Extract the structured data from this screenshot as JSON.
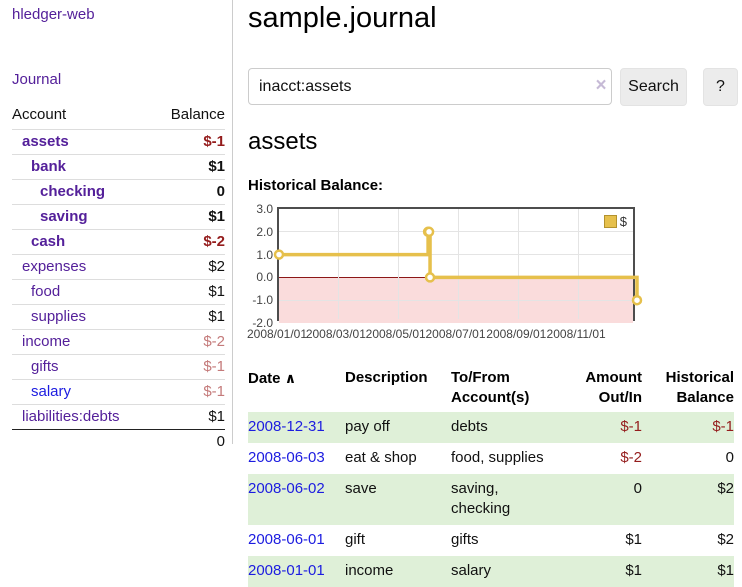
{
  "app": {
    "brand": "hledger-web",
    "nav_journal": "Journal"
  },
  "sidebar": {
    "header": {
      "account": "Account",
      "balance": "Balance"
    },
    "accounts": [
      {
        "name": "assets",
        "balance": "$-1",
        "level": 0,
        "active": true
      },
      {
        "name": "bank",
        "balance": "$1",
        "level": 1,
        "active": true
      },
      {
        "name": "checking",
        "balance": "0",
        "level": 2,
        "active": true
      },
      {
        "name": "saving",
        "balance": "$1",
        "level": 2,
        "active": true
      },
      {
        "name": "cash",
        "balance": "$-2",
        "level": 1,
        "active": true
      },
      {
        "name": "expenses",
        "balance": "$2",
        "level": 0,
        "active": false
      },
      {
        "name": "food",
        "balance": "$1",
        "level": 1,
        "active": false
      },
      {
        "name": "supplies",
        "balance": "$1",
        "level": 1,
        "active": false
      },
      {
        "name": "income",
        "balance": "$-2",
        "level": 0,
        "active": false
      },
      {
        "name": "gifts",
        "balance": "$-1",
        "level": 1,
        "active": false
      },
      {
        "name": "salary",
        "balance": "$-1",
        "level": 1,
        "active": false
      },
      {
        "name": "liabilities:debts",
        "balance": "$1",
        "level": 0,
        "active": false
      }
    ],
    "total": "0"
  },
  "main": {
    "title": "sample.journal",
    "search": {
      "value": "inacct:assets",
      "clear_icon": "×",
      "search_button": "Search",
      "help_button": "?"
    },
    "account_title": "assets",
    "chart_label": "Historical Balance:"
  },
  "chart_data": {
    "type": "line",
    "step": true,
    "title": "Historical Balance",
    "series": [
      {
        "name": "$",
        "color": "#e6c04c",
        "points": [
          [
            "2008-01-01",
            1
          ],
          [
            "2008-06-01",
            2
          ],
          [
            "2008-06-02",
            2
          ],
          [
            "2008-06-03",
            0
          ],
          [
            "2008-12-31",
            -1
          ]
        ]
      }
    ],
    "x_range": [
      "2008-01-01",
      "2008-12-31"
    ],
    "x_ticks": [
      "2008/01/01",
      "2008/03/01",
      "2008/05/01",
      "2008/07/01",
      "2008/09/01",
      "2008/11/01"
    ],
    "y_ticks": [
      3.0,
      2.0,
      1.0,
      0.0,
      -1.0,
      -2.0
    ],
    "ylim": [
      -2,
      3
    ],
    "grid": true,
    "negative_fill": "#fadcdc",
    "zero_line_color": "#8c1717",
    "legend": {
      "label": "$",
      "position": "top-right"
    }
  },
  "register": {
    "columns": {
      "date": "Date",
      "sort_indicator": "∧",
      "description": "Description",
      "accounts": "To/From Account(s)",
      "amount": "Amount Out/In",
      "balance": "Historical Balance"
    },
    "rows": [
      {
        "date": "2008-12-31",
        "description": "pay off",
        "accounts": "debts",
        "amount": "$-1",
        "balance": "$-1"
      },
      {
        "date": "2008-06-03",
        "description": "eat & shop",
        "accounts": "food, supplies",
        "amount": "$-2",
        "balance": "0"
      },
      {
        "date": "2008-06-02",
        "description": "save",
        "accounts": "saving, checking",
        "amount": "0",
        "balance": "$2"
      },
      {
        "date": "2008-06-01",
        "description": "gift",
        "accounts": "gifts",
        "amount": "$1",
        "balance": "$2"
      },
      {
        "date": "2008-01-01",
        "description": "income",
        "accounts": "salary",
        "amount": "$1",
        "balance": "$1"
      }
    ]
  }
}
